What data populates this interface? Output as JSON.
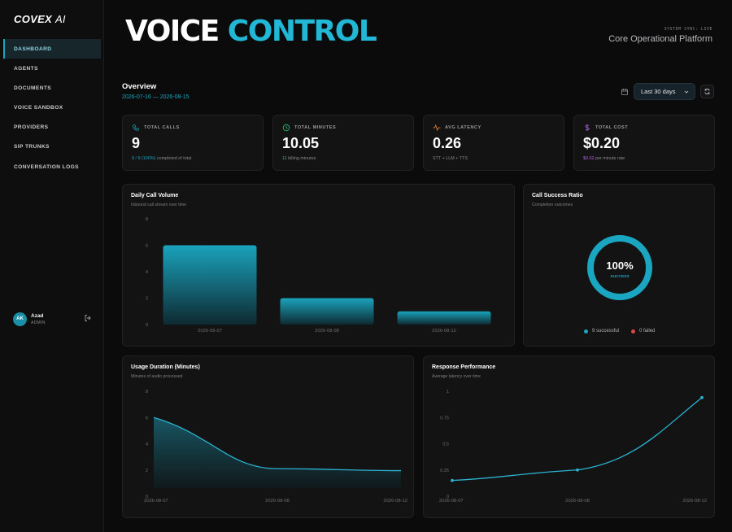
{
  "app": {
    "logo": "COVEX",
    "logo_suffix": "AI"
  },
  "sidebar": {
    "items": [
      {
        "label": "DASHBOARD",
        "active": true
      },
      {
        "label": "AGENTS",
        "active": false
      },
      {
        "label": "DOCUMENTS",
        "active": false
      },
      {
        "label": "VOICE SANDBOX",
        "active": false
      },
      {
        "label": "PROVIDERS",
        "active": false
      },
      {
        "label": "SIP TRUNKS",
        "active": false
      },
      {
        "label": "CONVERSATION LOGS",
        "active": false
      }
    ],
    "user": {
      "initials": "AK",
      "name": "Azad",
      "role": "ADMIN",
      "logout_icon": "logout-icon"
    }
  },
  "header": {
    "title_part1": "VOICE",
    "title_part2": "CONTROL",
    "sync_status": "SYSTEM SYNC: LIVE",
    "platform": "Core Operational Platform"
  },
  "overview": {
    "title": "Overview",
    "date_range": "2026-07-16 — 2026-08-15",
    "range_select": "Last 30 days",
    "calendar_icon": "calendar-icon",
    "refresh_icon": "refresh-icon"
  },
  "stats": [
    {
      "icon": "phone-icon",
      "label": "TOTAL CALLS",
      "value": "9",
      "sub_hl": "9 / 9 (100%)",
      "sub_rest": " completed of total",
      "hl": "cyan"
    },
    {
      "icon": "clock-icon",
      "label": "TOTAL MINUTES",
      "value": "10.05",
      "sub_hl": "11",
      "sub_rest": " billing minutes",
      "hl": "green"
    },
    {
      "icon": "pulse-icon",
      "label": "AVG LATENCY",
      "value": "0.26",
      "sub_hl": "",
      "sub_rest": "STT + LLM + TTS",
      "hl": "none"
    },
    {
      "icon": "dollar-icon",
      "label": "TOTAL COST",
      "value": "$0.20",
      "sub_hl": "$0.02",
      "sub_rest": " per minute rate",
      "hl": "purple"
    }
  ],
  "colors": {
    "accent": "#1aa6c1",
    "success": "#1aa6c1",
    "failed": "#e04545"
  },
  "charts": {
    "daily": {
      "title": "Daily Call Volume",
      "subtitle": "Inbound call stream over time"
    },
    "ratio": {
      "title": "Call Success Ratio",
      "subtitle": "Completion outcomes",
      "center_value": "100%",
      "center_label": "SUCCESS",
      "legend_success": "9 successful",
      "legend_failed": "0 failed"
    },
    "usage": {
      "title": "Usage Duration (Minutes)",
      "subtitle": "Minutes of audio processed"
    },
    "response": {
      "title": "Response Performance",
      "subtitle": "Average latency over time"
    }
  },
  "chart_data": [
    {
      "type": "bar",
      "title": "Daily Call Volume",
      "categories": [
        "2026-08-07",
        "2026-08-08",
        "2026-08-12"
      ],
      "values": [
        6,
        2,
        1
      ],
      "ylim": [
        0,
        8
      ],
      "yticks": [
        "0",
        "2",
        "4",
        "6",
        "8"
      ]
    },
    {
      "type": "pie",
      "title": "Call Success Ratio",
      "labels": [
        "successful",
        "failed"
      ],
      "values": [
        9,
        0
      ]
    },
    {
      "type": "area",
      "title": "Usage Duration (Minutes)",
      "categories": [
        "2026-08-07",
        "2026-08-08",
        "2026-08-12"
      ],
      "values": [
        6,
        2.1,
        1.95
      ],
      "ylim": [
        0,
        8
      ],
      "yticks": [
        "0",
        "2",
        "4",
        "6",
        "8"
      ]
    },
    {
      "type": "line",
      "title": "Response Performance",
      "categories": [
        "2026-08-07",
        "2026-08-08",
        "2026-08-12"
      ],
      "values": [
        0.15,
        0.25,
        0.94
      ],
      "ylim": [
        0,
        1
      ],
      "yticks": [
        "0",
        "0.25",
        "0.5",
        "0.75",
        "1"
      ]
    }
  ]
}
